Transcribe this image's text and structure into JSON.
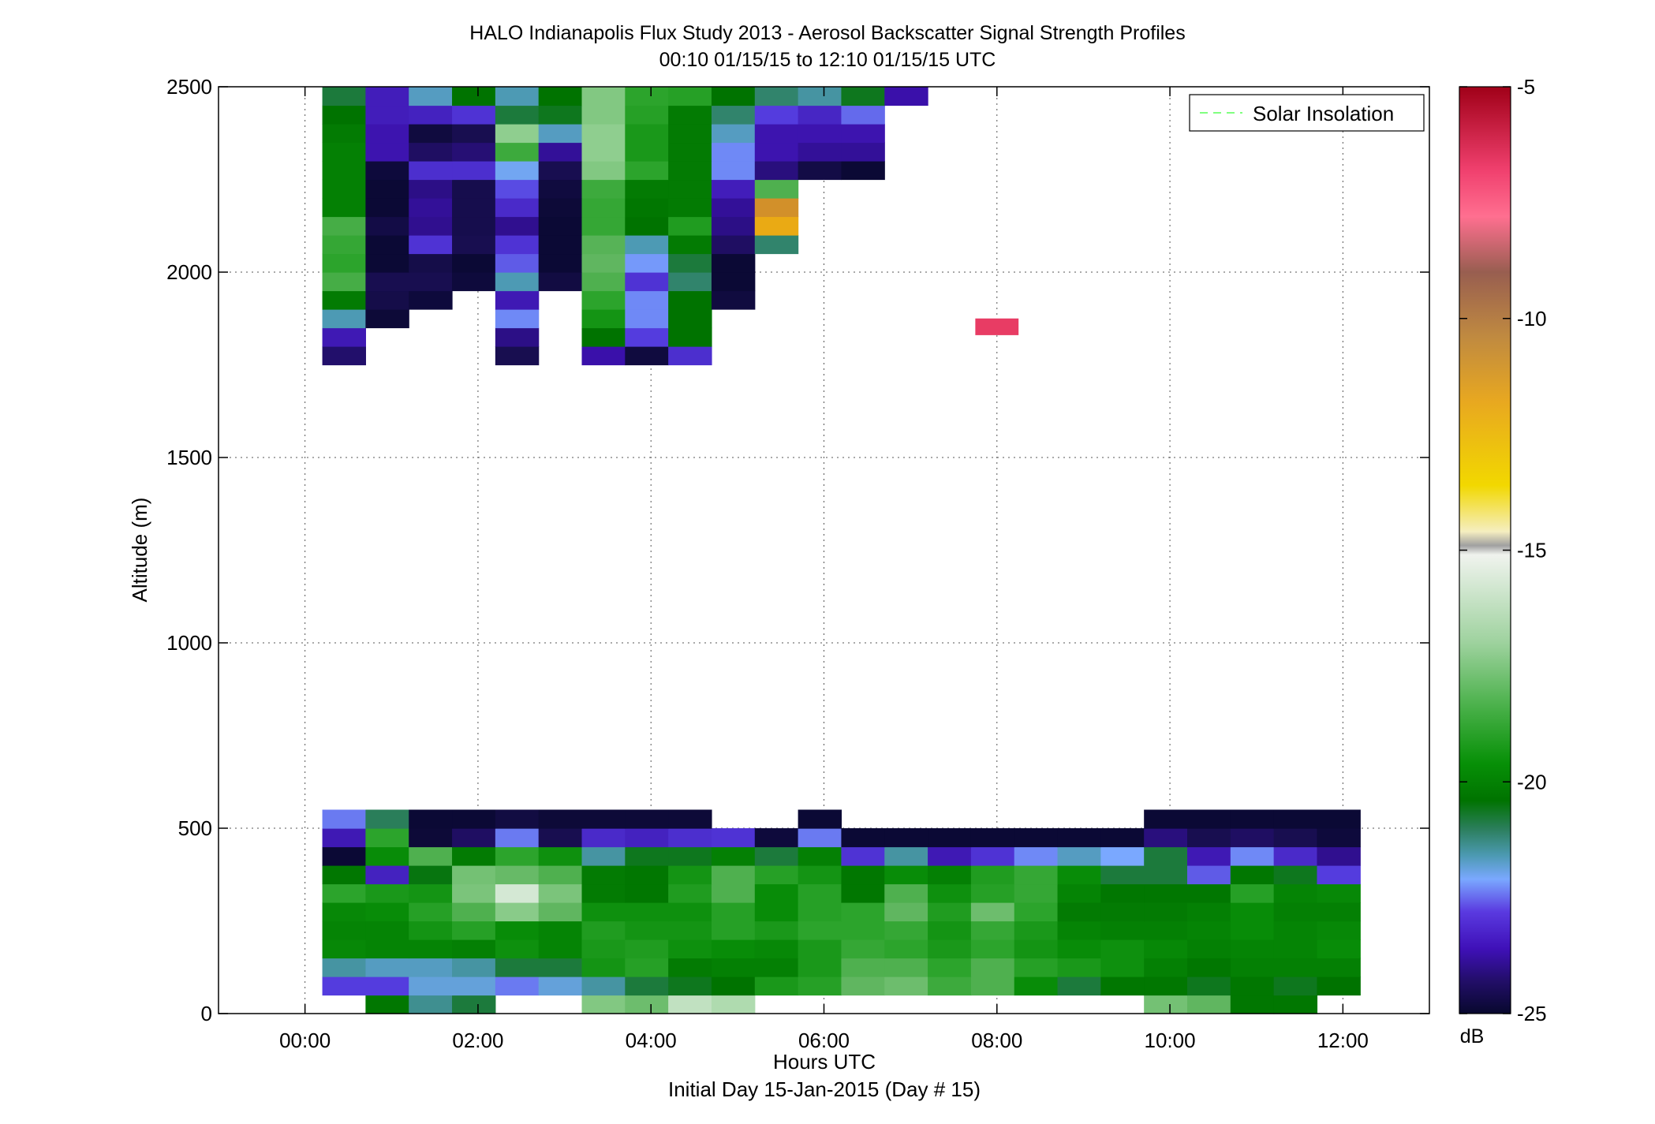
{
  "chart_data": {
    "type": "heatmap",
    "title": "HALO Indianapolis Flux Study 2013 - Aerosol Backscatter Signal Strength Profiles",
    "subtitle": "00:10 01/15/15 to 12:10 01/15/15  UTC",
    "xlabel": "Hours UTC",
    "xlabel2": "Initial Day 15-Jan-2015 (Day # 15)",
    "ylabel": "Altitude (m)",
    "xlim": [
      -1,
      13
    ],
    "ylim": [
      0,
      2500
    ],
    "x_ticks": [
      0,
      2,
      4,
      6,
      8,
      10,
      12
    ],
    "x_tick_labels": [
      "00:00",
      "02:00",
      "04:00",
      "06:00",
      "08:00",
      "10:00",
      "12:00"
    ],
    "y_ticks": [
      0,
      500,
      1000,
      1500,
      2000,
      2500
    ],
    "y_tick_labels": [
      "0",
      "500",
      "1000",
      "1500",
      "2000",
      "2500"
    ],
    "grid": true,
    "legend": {
      "position": "top-right",
      "entries": [
        {
          "label": "Solar Insolation",
          "color": "#80ff80",
          "style": "dashed"
        }
      ]
    },
    "colorbar": {
      "unit": "dB",
      "range": [
        -25,
        -5
      ],
      "ticks": [
        -5,
        -10,
        -15,
        -20,
        -25
      ],
      "tick_labels": [
        "-5",
        "-10",
        "-15",
        "-20",
        "-25"
      ]
    },
    "time_columns_hours": [
      0.2,
      0.7,
      1.2,
      1.7,
      2.2,
      2.7,
      3.2,
      3.7,
      4.2,
      4.7,
      5.2,
      5.7,
      6.2,
      6.7,
      7.2,
      7.7,
      8.2,
      8.7,
      9.2,
      9.7,
      10.2,
      10.7,
      11.2,
      11.7
    ],
    "column_width_hours": 0.5,
    "altitude_bins_m": [
      50,
      100,
      150,
      200,
      250,
      300,
      350,
      400,
      450,
      500,
      550,
      1800,
      1850,
      1900,
      1950,
      2000,
      2050,
      2100,
      2150,
      2200,
      2250,
      2300,
      2350,
      2400,
      2450,
      2500
    ],
    "bin_height_m": 50,
    "values_dB": [
      [
        null,
        -19.5,
        -20.5,
        -20.0,
        null,
        null,
        -17.3,
        -17.6,
        -16.3,
        -16.6,
        null,
        null,
        null,
        null,
        null,
        null,
        null,
        null,
        null,
        -17.5,
        -17.8,
        -19.5,
        -19.5,
        null
      ],
      [
        -22.0,
        -22.0,
        -21.0,
        -21.0,
        -21.6,
        -21.0,
        -20.6,
        -20.0,
        -19.8,
        -19.6,
        -18.7,
        -18.5,
        -17.8,
        -17.6,
        -18.2,
        -18.0,
        -19.0,
        -20.0,
        -19.5,
        -19.5,
        -19.8,
        -19.5,
        -19.8,
        -19.6
      ],
      [
        -20.6,
        -20.8,
        -20.8,
        -20.6,
        -20.0,
        -20.0,
        -18.8,
        -18.5,
        -19.4,
        -19.3,
        -19.3,
        -18.7,
        -18.0,
        -18.0,
        -18.4,
        -18.0,
        -18.5,
        -18.7,
        -18.9,
        -19.3,
        -19.5,
        -19.3,
        -19.3,
        -19.3
      ],
      [
        -19.1,
        -19.2,
        -19.2,
        -19.3,
        -18.9,
        -19.2,
        -18.7,
        -18.6,
        -18.9,
        -19.0,
        -19.1,
        -18.7,
        -18.3,
        -18.4,
        -18.7,
        -18.4,
        -18.8,
        -19.0,
        -18.9,
        -19.1,
        -19.3,
        -19.2,
        -19.2,
        -19.0
      ],
      [
        -19.2,
        -19.2,
        -18.8,
        -18.5,
        -19.0,
        -19.2,
        -18.6,
        -18.8,
        -18.8,
        -18.5,
        -18.7,
        -18.4,
        -18.4,
        -18.3,
        -18.8,
        -18.3,
        -18.7,
        -19.2,
        -19.3,
        -19.3,
        -19.2,
        -19.0,
        -19.2,
        -19.1
      ],
      [
        -19.1,
        -19.0,
        -18.5,
        -18.0,
        -17.2,
        -17.8,
        -18.9,
        -18.9,
        -18.9,
        -18.5,
        -19.0,
        -18.5,
        -18.4,
        -17.8,
        -18.6,
        -17.6,
        -18.4,
        -19.4,
        -19.4,
        -19.4,
        -19.3,
        -19.0,
        -19.3,
        -19.3
      ],
      [
        -18.4,
        -18.7,
        -18.8,
        -17.4,
        -16.0,
        -17.4,
        -19.4,
        -19.5,
        -18.6,
        -18.0,
        -19.0,
        -18.5,
        -19.5,
        -18.0,
        -18.9,
        -18.5,
        -18.3,
        -19.2,
        -19.5,
        -19.5,
        -19.5,
        -18.5,
        -19.2,
        -19.1
      ],
      [
        -19.5,
        -22.6,
        -19.7,
        -17.5,
        -17.7,
        -18.0,
        -19.4,
        -19.5,
        -18.8,
        -18.0,
        -18.5,
        -18.8,
        -19.5,
        -19.0,
        -19.3,
        -18.6,
        -18.3,
        -19.0,
        -20.0,
        -20.0,
        -21.8,
        -19.5,
        -19.8,
        -22.0
      ],
      [
        -24.8,
        -19.0,
        -18.0,
        -19.4,
        -18.4,
        -18.9,
        -20.6,
        -19.8,
        -19.8,
        -19.3,
        -20.0,
        -19.3,
        -22.2,
        -20.6,
        -22.8,
        -22.2,
        -21.5,
        -20.8,
        -21.3,
        -20.0,
        -22.8,
        -21.5,
        -22.4,
        -23.3
      ],
      [
        -22.8,
        -18.4,
        -24.7,
        -23.8,
        -21.6,
        -24.0,
        -22.4,
        -22.6,
        -22.3,
        -22.2,
        -24.6,
        -21.6,
        -24.8,
        -24.8,
        -24.8,
        -24.8,
        -24.8,
        -24.8,
        -24.8,
        -23.5,
        -24.0,
        -23.8,
        -24.0,
        -24.6
      ],
      [
        -21.6,
        -20.2,
        -24.8,
        -24.8,
        -24.4,
        -24.7,
        -24.7,
        -24.7,
        -24.7,
        null,
        null,
        -24.8,
        null,
        null,
        null,
        null,
        null,
        null,
        null,
        -24.8,
        -24.8,
        -24.8,
        -24.8,
        -24.8
      ],
      [
        -23.7,
        null,
        null,
        null,
        -24.0,
        null,
        -23.0,
        -24.5,
        -22.3,
        null,
        null,
        null,
        null,
        null,
        null,
        null,
        null,
        null,
        null,
        null,
        null,
        null,
        null,
        null
      ],
      [
        -22.8,
        null,
        null,
        null,
        -23.4,
        null,
        -19.6,
        -22.0,
        -19.6,
        null,
        null,
        null,
        null,
        null,
        null,
        null,
        null,
        null,
        null,
        null,
        null,
        null,
        null,
        null
      ],
      [
        -20.7,
        -24.7,
        null,
        null,
        -21.5,
        null,
        -18.8,
        -21.5,
        -19.6,
        null,
        null,
        null,
        null,
        null,
        null,
        null,
        null,
        null,
        null,
        null,
        null,
        null,
        null,
        null
      ],
      [
        -19.4,
        -24.2,
        -24.6,
        null,
        -22.8,
        null,
        -18.4,
        -21.5,
        -19.6,
        -24.5,
        null,
        null,
        null,
        null,
        null,
        null,
        null,
        null,
        null,
        null,
        null,
        null,
        null,
        null
      ],
      [
        -18.1,
        -24.0,
        -24.0,
        -24.6,
        -20.7,
        -24.4,
        -18.0,
        -22.2,
        -20.3,
        -24.8,
        null,
        null,
        null,
        null,
        null,
        null,
        null,
        null,
        null,
        null,
        null,
        null,
        null,
        null
      ],
      [
        -18.4,
        -24.8,
        -24.2,
        -24.8,
        -21.8,
        -24.8,
        -17.8,
        -21.4,
        -20.0,
        -24.8,
        null,
        null,
        null,
        null,
        null,
        null,
        null,
        null,
        null,
        null,
        null,
        null,
        null,
        null
      ],
      [
        -18.3,
        -24.8,
        -22.2,
        -24.0,
        -22.2,
        -24.8,
        -17.9,
        -20.7,
        -19.4,
        -23.8,
        -20.3,
        null,
        null,
        null,
        null,
        null,
        null,
        null,
        null,
        null,
        null,
        null,
        null,
        null
      ],
      [
        -18.1,
        -24.3,
        -23.3,
        -24.1,
        -23.3,
        -24.8,
        -18.3,
        -19.6,
        -18.6,
        -23.4,
        -12.5,
        null,
        null,
        null,
        null,
        null,
        null,
        null,
        null,
        null,
        null,
        null,
        null,
        null
      ],
      [
        -19.3,
        -24.8,
        -23.2,
        -24.1,
        -22.4,
        -24.7,
        -18.3,
        -19.5,
        -19.4,
        -23.2,
        -11.3,
        null,
        null,
        null,
        null,
        null,
        null,
        null,
        null,
        null,
        null,
        null,
        null,
        null
      ],
      [
        -19.3,
        -24.8,
        -23.4,
        -24.1,
        -21.9,
        -24.5,
        -18.2,
        -19.4,
        -19.4,
        -22.7,
        -18.0,
        null,
        null,
        null,
        null,
        null,
        null,
        null,
        null,
        null,
        null,
        null,
        null,
        null
      ],
      [
        -19.3,
        -24.6,
        -22.3,
        -22.3,
        -21.2,
        -24.0,
        -17.3,
        -18.4,
        -19.4,
        -21.5,
        -23.5,
        -24.3,
        -24.8,
        null,
        null,
        null,
        null,
        null,
        null,
        null,
        null,
        null,
        null,
        null
      ],
      [
        -19.3,
        -22.9,
        -23.8,
        -23.6,
        -18.2,
        -23.2,
        -17.1,
        -18.7,
        -19.4,
        -21.5,
        -22.9,
        -23.2,
        -23.2,
        null,
        null,
        null,
        null,
        null,
        null,
        null,
        null,
        null,
        null,
        null
      ],
      [
        -19.4,
        -22.9,
        -24.5,
        -24.0,
        -17.1,
        -20.8,
        -17.1,
        -18.7,
        -19.4,
        -20.8,
        -22.9,
        -22.9,
        -22.9,
        null,
        null,
        null,
        null,
        null,
        null,
        null,
        null,
        null,
        null,
        null
      ],
      [
        -19.6,
        -22.7,
        -22.6,
        -22.2,
        -20.0,
        -19.8,
        -17.3,
        -18.5,
        -19.4,
        -20.3,
        -22.0,
        -22.5,
        -21.7,
        null,
        null,
        null,
        null,
        null,
        null,
        null,
        null,
        null,
        null,
        null
      ],
      [
        -20.0,
        -22.7,
        -20.8,
        -19.6,
        -20.7,
        -19.6,
        -17.3,
        -18.4,
        -18.5,
        -19.6,
        -20.3,
        -20.6,
        -19.8,
        -23.0,
        null,
        null,
        null,
        null,
        null,
        null,
        null,
        null,
        null,
        null
      ]
    ],
    "extra_cells": [
      {
        "x_start_hours": 7.75,
        "x_end_hours": 8.25,
        "y_bottom_m": 1830,
        "y_top_m": 1875,
        "value_dB": -7.5
      }
    ]
  }
}
